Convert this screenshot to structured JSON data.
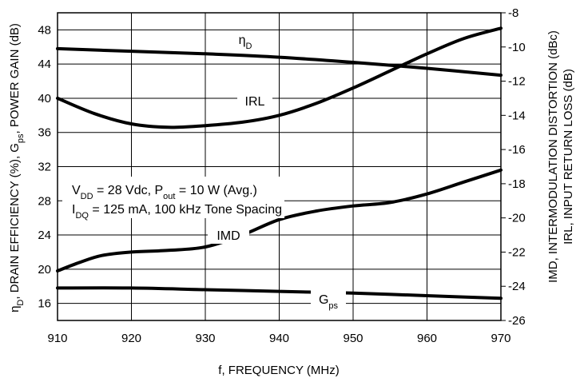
{
  "chart_data": {
    "type": "line",
    "xlabel": "f, FREQUENCY (MHz)",
    "ylabel_left": {
      "p1": "η",
      "p1sub": "D",
      "p2": ", DRAIN EFFICIENCY (%), G",
      "p2sub": "ps",
      "p3": ", POWER GAIN (dB)"
    },
    "ylabel_right_line1": "IMD, INTERMODULATION DISTORTION (dBc)",
    "ylabel_right_line2": "IRL, INPUT RETURN LOSS (dB)",
    "xlim": [
      910,
      970
    ],
    "ylim_left": [
      14,
      50
    ],
    "ylim_right": [
      -26,
      -8
    ],
    "x_ticks": [
      910,
      920,
      930,
      940,
      950,
      960,
      970
    ],
    "y_ticks_left": [
      16,
      20,
      24,
      28,
      32,
      36,
      40,
      44,
      48
    ],
    "y_ticks_right": [
      -8,
      -10,
      -12,
      -14,
      -16,
      -18,
      -20,
      -22,
      -24,
      -26
    ],
    "conditions": {
      "line1": {
        "a": "V",
        "asub": "DD",
        "b": " = 28 Vdc, P",
        "bsub": "out",
        "c": " = 10 W (Avg.)"
      },
      "line2": {
        "a": "I",
        "asub": "DQ",
        "b": " = 125 mA, 100 kHz Tone Spacing"
      }
    },
    "series": [
      {
        "name": "ηD",
        "label_main": "η",
        "label_sub": "D",
        "axis": "left",
        "x": [
          910,
          920,
          930,
          940,
          950,
          960,
          970
        ],
        "values": [
          45.8,
          45.5,
          45.2,
          44.8,
          44.2,
          43.5,
          42.7
        ]
      },
      {
        "name": "IRL",
        "label_main": "IRL",
        "label_sub": "",
        "axis": "right",
        "x": [
          910,
          915,
          920,
          925,
          930,
          935,
          940,
          945,
          950,
          955,
          960,
          965,
          970
        ],
        "values": [
          -13.0,
          -13.9,
          -14.5,
          -14.7,
          -14.6,
          -14.4,
          -14.0,
          -13.3,
          -12.4,
          -11.4,
          -10.4,
          -9.5,
          -8.9
        ]
      },
      {
        "name": "IMD",
        "label_main": "IMD",
        "label_sub": "",
        "axis": "right",
        "x": [
          910,
          913,
          916,
          920,
          925,
          930,
          935,
          940,
          945,
          950,
          955,
          960,
          965,
          970
        ],
        "values": [
          -23.1,
          -22.6,
          -22.2,
          -22.0,
          -21.9,
          -21.7,
          -21.0,
          -20.1,
          -19.6,
          -19.3,
          -19.1,
          -18.6,
          -17.9,
          -17.2
        ]
      },
      {
        "name": "Gps",
        "label_main": "G",
        "label_sub": "ps",
        "axis": "left",
        "x": [
          910,
          920,
          930,
          940,
          950,
          960,
          970
        ],
        "values": [
          17.8,
          17.8,
          17.6,
          17.4,
          17.2,
          16.9,
          16.6
        ]
      }
    ]
  }
}
